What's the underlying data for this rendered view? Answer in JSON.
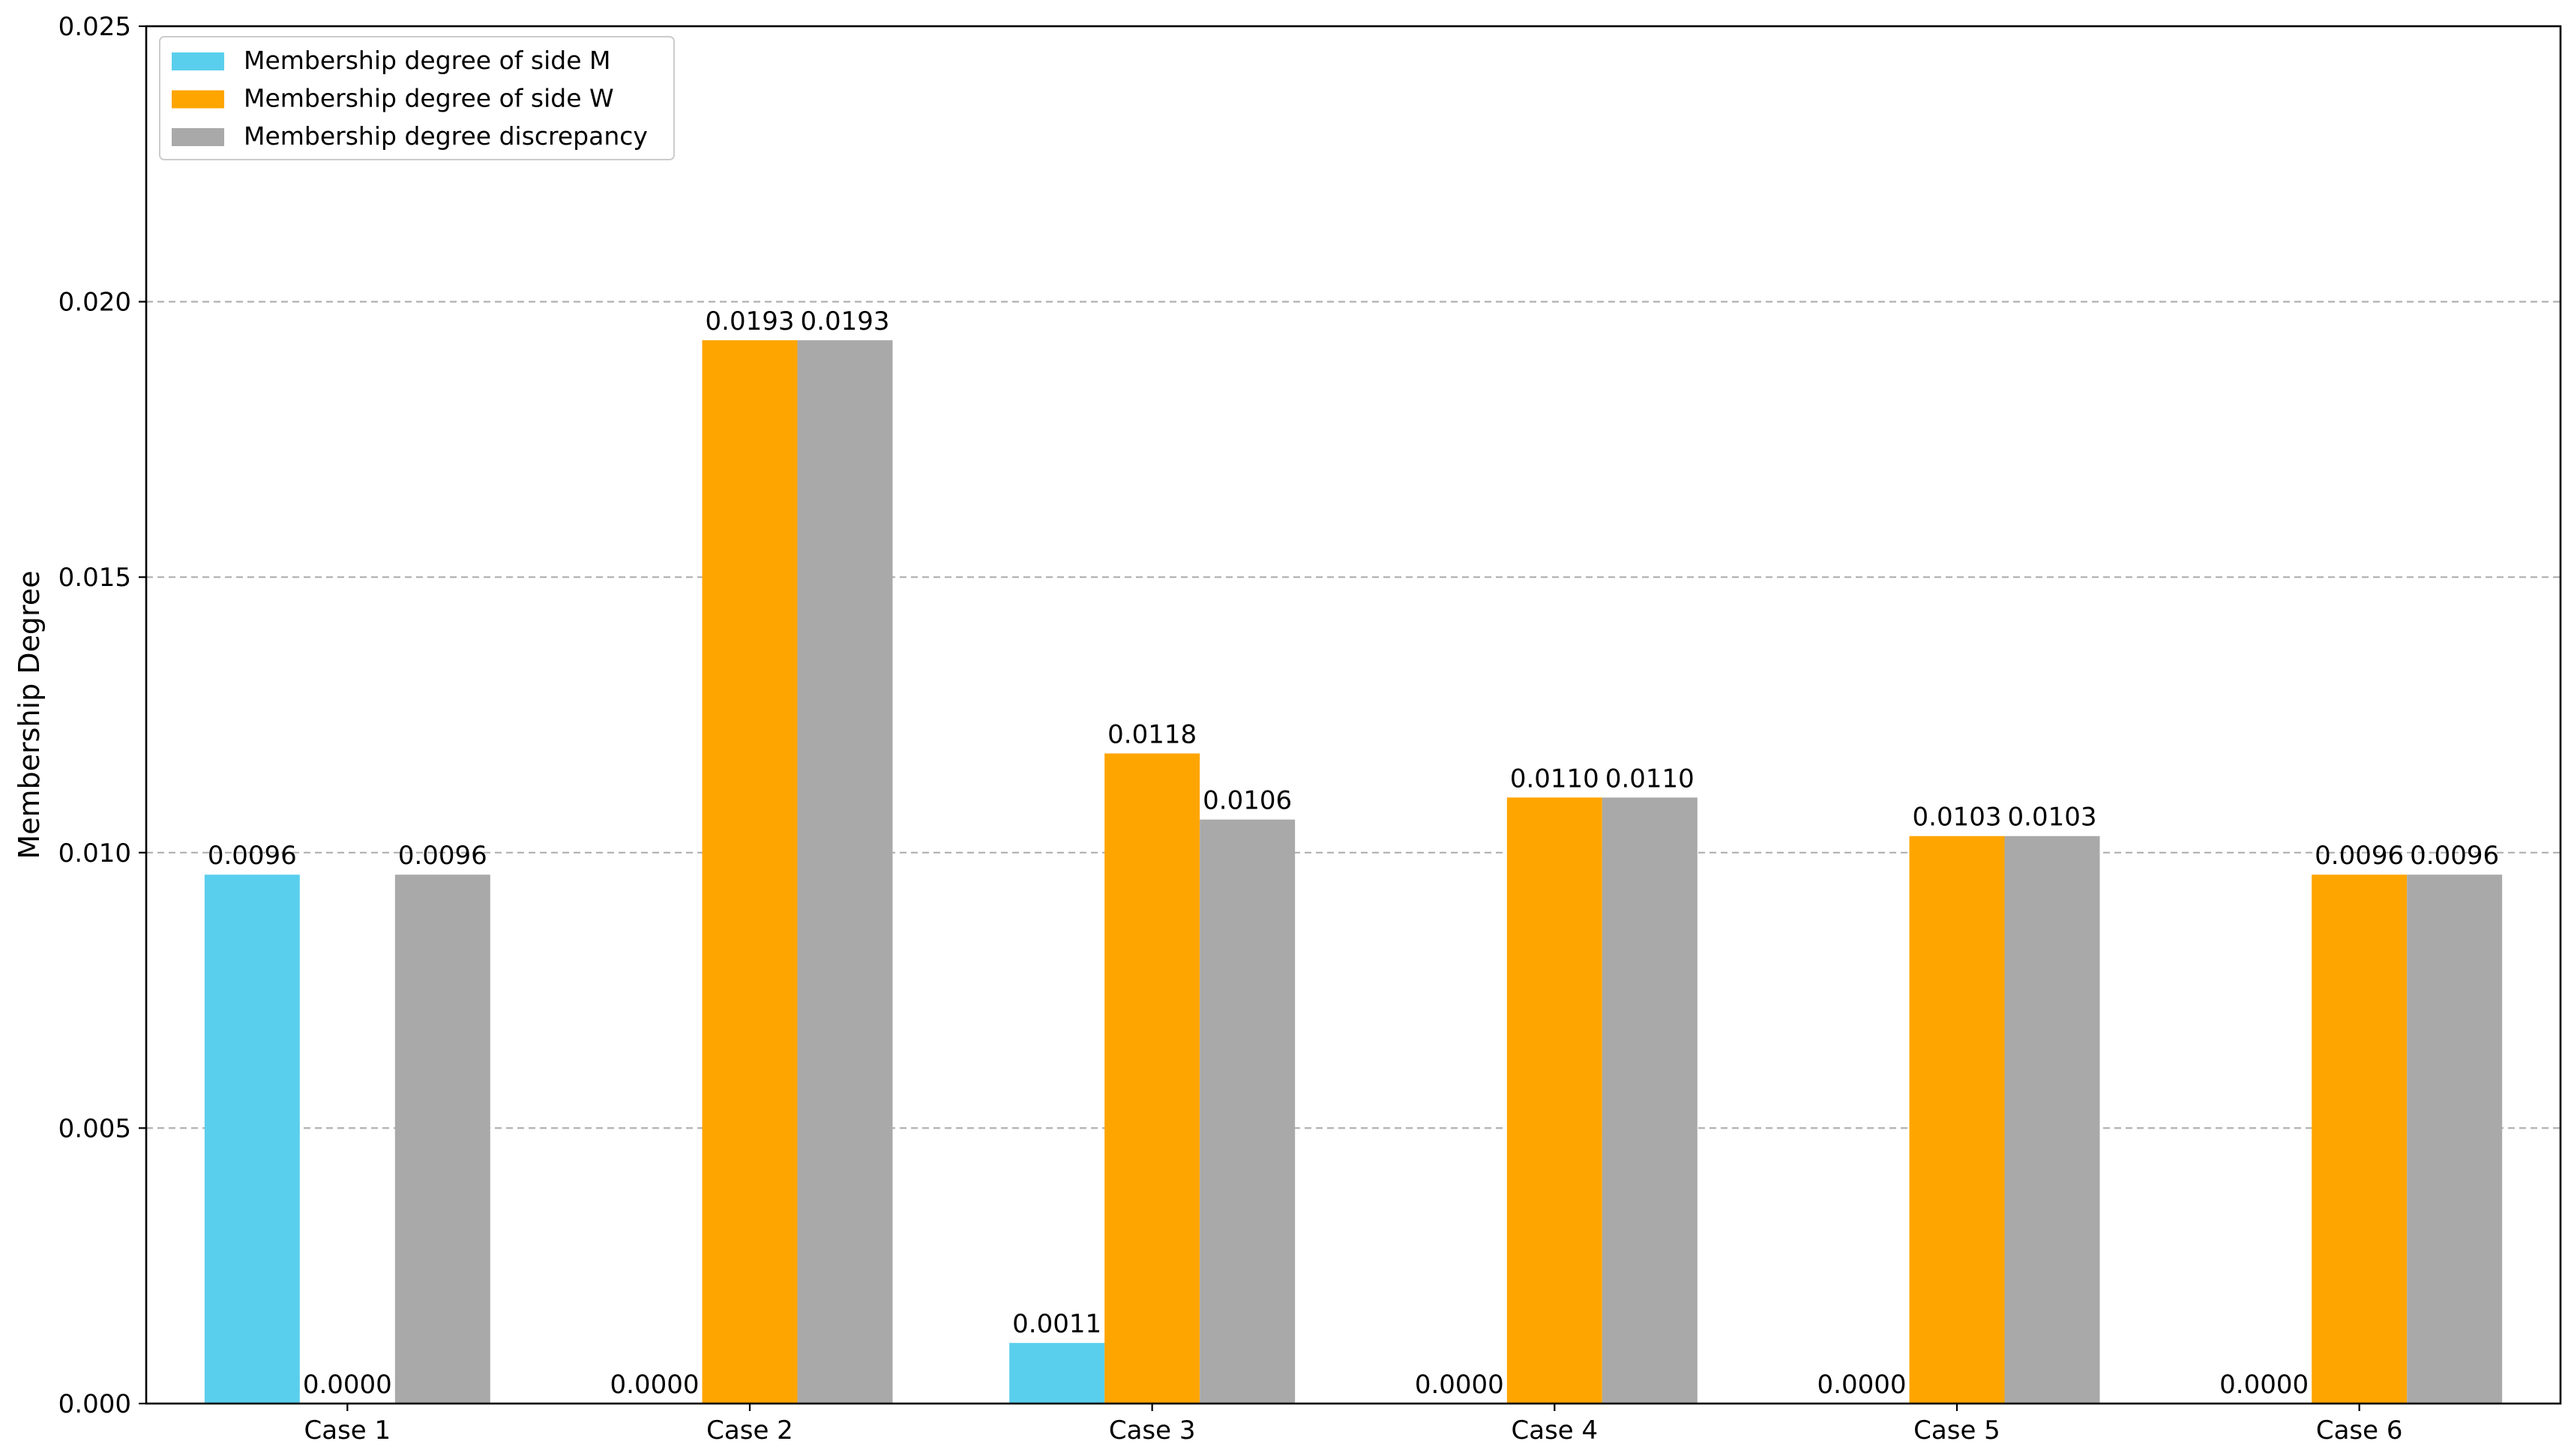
{
  "chart_data": {
    "type": "bar",
    "title": "",
    "xlabel": "",
    "ylabel": "Membership Degree",
    "ylim": [
      0,
      0.025
    ],
    "yticks": [
      0,
      0.005,
      0.01,
      0.015,
      0.02,
      0.025
    ],
    "ytick_labels": [
      "0.000",
      "0.005",
      "0.010",
      "0.015",
      "0.020",
      "0.025"
    ],
    "grid": "horizontal dashed",
    "legend_position": "top-left",
    "categories": [
      "Case 1",
      "Case 2",
      "Case 3",
      "Case 4",
      "Case 5",
      "Case 6"
    ],
    "series": [
      {
        "name": "Membership degree of side M",
        "color": "#5ACFED",
        "values": [
          0.0096,
          0.0,
          0.0011,
          0.0,
          0.0,
          0.0
        ],
        "labels": [
          "0.0096",
          "0.0000",
          "0.0011",
          "0.0000",
          "0.0000",
          "0.0000"
        ]
      },
      {
        "name": "Membership degree of side W",
        "color": "#FFA500",
        "values": [
          0.0,
          0.0193,
          0.0118,
          0.011,
          0.0103,
          0.0096
        ],
        "labels": [
          "0.0000",
          "0.0193",
          "0.0118",
          "0.0110",
          "0.0103",
          "0.0096"
        ]
      },
      {
        "name": "Membership degree discrepancy",
        "color": "#A9A9A9",
        "values": [
          0.0096,
          0.0193,
          0.0106,
          0.011,
          0.0103,
          0.0096
        ],
        "labels": [
          "0.0096",
          "0.0193",
          "0.0106",
          "0.0110",
          "0.0103",
          "0.0096"
        ]
      }
    ]
  }
}
